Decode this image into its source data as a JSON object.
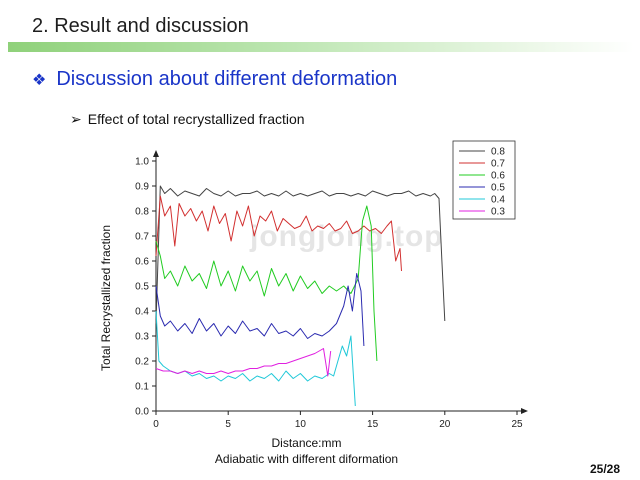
{
  "slide": {
    "title": "2. Result and discussion",
    "heading": "Discussion about different deformation",
    "heading_bullet": "❖",
    "subheading": "Effect of total recrystallized fraction",
    "subheading_bullet": "➢",
    "page": "25/28",
    "watermark": "jongjong.top",
    "colors": {
      "heading": "#1a35c8",
      "title_bar": "#8fd17a"
    }
  },
  "chart_data": {
    "type": "line",
    "title": "",
    "xlabel": "Distance:mm",
    "xlabel2": "Adiabatic with different diformation",
    "ylabel": "Total Recrystallized fraction",
    "xlim": [
      0,
      25
    ],
    "ylim": [
      0,
      1.0
    ],
    "xticks": [
      "0",
      "5",
      "10",
      "15",
      "20",
      "25"
    ],
    "yticks": [
      "0.0",
      "0.1",
      "0.2",
      "0.3",
      "0.4",
      "0.5",
      "0.6",
      "0.7",
      "0.8",
      "0.9",
      "1.0"
    ],
    "grid": false,
    "legend_position": "top-right",
    "series": [
      {
        "name": "0.8",
        "color": "#444444",
        "x": [
          0,
          0.3,
          0.6,
          1,
          1.5,
          2,
          2.5,
          3,
          3.5,
          4,
          4.5,
          5,
          5.5,
          6,
          6.5,
          7,
          7.5,
          8,
          8.5,
          9,
          9.5,
          10,
          10.5,
          11,
          11.5,
          12,
          12.5,
          13,
          13.5,
          14,
          14.5,
          15,
          15.5,
          16,
          16.5,
          17,
          17.5,
          18,
          18.5,
          19,
          19.3,
          19.6,
          19.8,
          20
        ],
        "y": [
          0.35,
          0.9,
          0.87,
          0.89,
          0.86,
          0.88,
          0.87,
          0.86,
          0.89,
          0.87,
          0.86,
          0.88,
          0.86,
          0.87,
          0.87,
          0.88,
          0.86,
          0.87,
          0.86,
          0.88,
          0.86,
          0.87,
          0.86,
          0.87,
          0.88,
          0.86,
          0.87,
          0.87,
          0.86,
          0.87,
          0.86,
          0.88,
          0.87,
          0.86,
          0.87,
          0.87,
          0.88,
          0.86,
          0.87,
          0.86,
          0.87,
          0.85,
          0.6,
          0.36
        ]
      },
      {
        "name": "0.7",
        "color": "#d23030",
        "x": [
          0,
          0.3,
          0.6,
          1,
          1.3,
          1.6,
          2,
          2.4,
          2.8,
          3.2,
          3.6,
          4,
          4.4,
          4.8,
          5.2,
          5.6,
          6,
          6.4,
          6.8,
          7.2,
          7.6,
          8,
          8.4,
          8.8,
          9.2,
          9.6,
          10,
          10.4,
          10.8,
          11.2,
          11.6,
          12,
          12.4,
          12.8,
          13.2,
          13.6,
          14,
          14.4,
          14.8,
          15.2,
          15.6,
          16,
          16.3,
          16.6,
          16.9,
          17
        ],
        "y": [
          0.62,
          0.86,
          0.78,
          0.82,
          0.66,
          0.83,
          0.78,
          0.81,
          0.76,
          0.8,
          0.72,
          0.82,
          0.75,
          0.79,
          0.68,
          0.8,
          0.74,
          0.82,
          0.7,
          0.78,
          0.76,
          0.8,
          0.72,
          0.77,
          0.75,
          0.73,
          0.74,
          0.78,
          0.72,
          0.74,
          0.73,
          0.75,
          0.72,
          0.73,
          0.76,
          0.71,
          0.72,
          0.74,
          0.72,
          0.73,
          0.71,
          0.74,
          0.76,
          0.6,
          0.65,
          0.56
        ]
      },
      {
        "name": "0.6",
        "color": "#22cc22",
        "x": [
          0,
          0.3,
          0.6,
          1,
          1.5,
          2,
          2.5,
          3,
          3.5,
          4,
          4.5,
          5,
          5.5,
          6,
          6.5,
          7,
          7.5,
          8,
          8.5,
          9,
          9.5,
          10,
          10.5,
          11,
          11.5,
          12,
          12.5,
          13,
          13.5,
          14,
          14.3,
          14.6,
          14.9,
          15.1,
          15.3
        ],
        "y": [
          0.68,
          0.62,
          0.53,
          0.56,
          0.5,
          0.58,
          0.52,
          0.55,
          0.49,
          0.6,
          0.5,
          0.56,
          0.48,
          0.58,
          0.52,
          0.56,
          0.46,
          0.57,
          0.5,
          0.55,
          0.48,
          0.54,
          0.49,
          0.52,
          0.47,
          0.5,
          0.48,
          0.5,
          0.47,
          0.53,
          0.76,
          0.82,
          0.74,
          0.4,
          0.2
        ]
      },
      {
        "name": "0.5",
        "color": "#2b2bb0",
        "x": [
          0,
          0.3,
          0.6,
          1,
          1.5,
          2,
          2.5,
          3,
          3.5,
          4,
          4.5,
          5,
          5.5,
          6,
          6.5,
          7,
          7.5,
          8,
          8.5,
          9,
          9.5,
          10,
          10.5,
          11,
          11.5,
          12,
          12.5,
          13,
          13.3,
          13.6,
          13.9,
          14.2,
          14.4
        ],
        "y": [
          0.5,
          0.38,
          0.34,
          0.36,
          0.32,
          0.35,
          0.31,
          0.37,
          0.32,
          0.35,
          0.3,
          0.34,
          0.31,
          0.36,
          0.32,
          0.33,
          0.3,
          0.35,
          0.31,
          0.32,
          0.3,
          0.33,
          0.29,
          0.31,
          0.3,
          0.32,
          0.35,
          0.42,
          0.5,
          0.4,
          0.55,
          0.48,
          0.26
        ]
      },
      {
        "name": "0.4",
        "color": "#20c8d8",
        "x": [
          0,
          0.2,
          0.5,
          1,
          1.5,
          2,
          2.5,
          3,
          3.5,
          4,
          4.5,
          5,
          5.5,
          6,
          6.5,
          7,
          7.5,
          8,
          8.5,
          9,
          9.5,
          10,
          10.5,
          11,
          11.5,
          12,
          12.3,
          12.6,
          12.9,
          13.2,
          13.5,
          13.8
        ],
        "y": [
          0.4,
          0.2,
          0.18,
          0.16,
          0.15,
          0.16,
          0.14,
          0.15,
          0.13,
          0.14,
          0.12,
          0.14,
          0.13,
          0.15,
          0.12,
          0.14,
          0.13,
          0.15,
          0.12,
          0.16,
          0.13,
          0.15,
          0.12,
          0.14,
          0.13,
          0.15,
          0.14,
          0.2,
          0.26,
          0.22,
          0.3,
          0.02
        ]
      },
      {
        "name": "0.3",
        "color": "#e020e0",
        "x": [
          0,
          0.5,
          1,
          1.5,
          2,
          2.5,
          3,
          3.5,
          4,
          4.5,
          5,
          5.5,
          6,
          6.5,
          7,
          7.5,
          8,
          8.5,
          9,
          9.5,
          10,
          10.5,
          11,
          11.3,
          11.6,
          11.9,
          12.1
        ],
        "y": [
          0.17,
          0.16,
          0.16,
          0.15,
          0.16,
          0.15,
          0.16,
          0.15,
          0.15,
          0.16,
          0.15,
          0.16,
          0.16,
          0.17,
          0.17,
          0.18,
          0.18,
          0.19,
          0.19,
          0.2,
          0.21,
          0.22,
          0.23,
          0.24,
          0.25,
          0.14,
          0.24
        ]
      }
    ]
  }
}
